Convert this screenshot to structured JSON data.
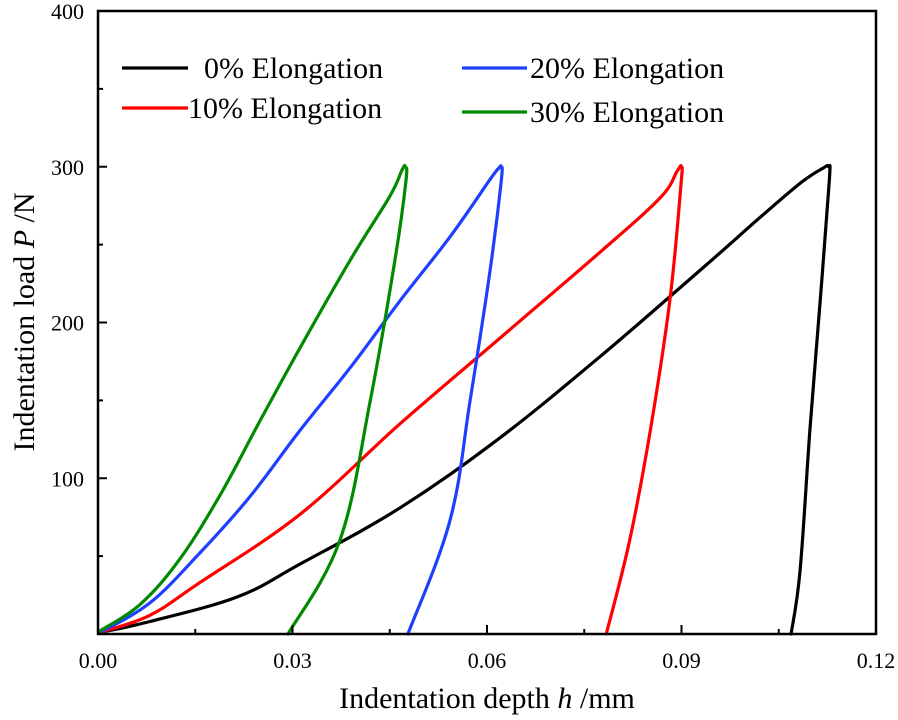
{
  "chart_data": {
    "type": "line",
    "title": "",
    "xlabel": {
      "prefix": "Indentation depth  ",
      "symbol": "h",
      "suffix": " /mm"
    },
    "ylabel": {
      "prefix": "Indentation load  ",
      "symbol": "P",
      "suffix": " /N"
    },
    "xlim": [
      0.0,
      0.12
    ],
    "ylim": [
      0,
      400
    ],
    "x_ticks": [
      0.0,
      0.03,
      0.06,
      0.09,
      0.12
    ],
    "x_tick_labels": [
      "0.00",
      "0.03",
      "0.06",
      "0.09",
      "0.12"
    ],
    "x_minor_ticks": [
      0.015,
      0.045,
      0.075,
      0.105
    ],
    "y_ticks": [
      100,
      200,
      300,
      400
    ],
    "y_tick_labels": [
      "100",
      "200",
      "300",
      "400"
    ],
    "y_minor_ticks": [
      50,
      150,
      250,
      350
    ],
    "grid": false,
    "legend_position": "top-left, two columns",
    "series": [
      {
        "name": "0%  Elongation",
        "color": "#000000",
        "x": [
          0.0003,
          0.008,
          0.0216,
          0.0312,
          0.0466,
          0.062,
          0.0774,
          0.093,
          0.102,
          0.1085,
          0.1118,
          0.1127,
          0.1128,
          0.1114,
          0.1098,
          0.1083,
          0.1069
        ],
        "y": [
          1,
          8,
          24,
          45,
          81,
          126,
          178,
          234,
          267,
          290,
          299,
          300,
          291,
          214,
          131,
          41,
          0
        ]
      },
      {
        "name": "10%  Elongation",
        "color": "#ff0000",
        "x": [
          0.0003,
          0.008,
          0.0157,
          0.0312,
          0.0466,
          0.062,
          0.0774,
          0.0867,
          0.0893,
          0.09,
          0.0899,
          0.0882,
          0.0852,
          0.082,
          0.0784
        ],
        "y": [
          1,
          12,
          33,
          77,
          135,
          190,
          245,
          280,
          297,
          300,
          288,
          214,
          131,
          60,
          0
        ]
      },
      {
        "name": "20% Elongation",
        "color": "#1f3fff",
        "x": [
          0.0003,
          0.008,
          0.0157,
          0.0234,
          0.0312,
          0.0389,
          0.0466,
          0.0543,
          0.0605,
          0.0618,
          0.0622,
          0.0622,
          0.0605,
          0.0574,
          0.0543,
          0.0478
        ],
        "y": [
          1,
          20,
          52,
          88,
          131,
          171,
          214,
          255,
          292,
          299,
          300,
          291,
          234,
          150,
          73,
          0
        ]
      },
      {
        "name": "30% Elongation",
        "color": "#008a00",
        "x": [
          0.0003,
          0.0065,
          0.0126,
          0.0188,
          0.025,
          0.0312,
          0.0389,
          0.045,
          0.0469,
          0.0474,
          0.0475,
          0.0458,
          0.042,
          0.0373,
          0.0293
        ],
        "y": [
          2,
          19,
          48,
          89,
          137,
          184,
          240,
          281,
          298,
          300,
          291,
          240,
          150,
          60,
          0
        ]
      }
    ]
  }
}
